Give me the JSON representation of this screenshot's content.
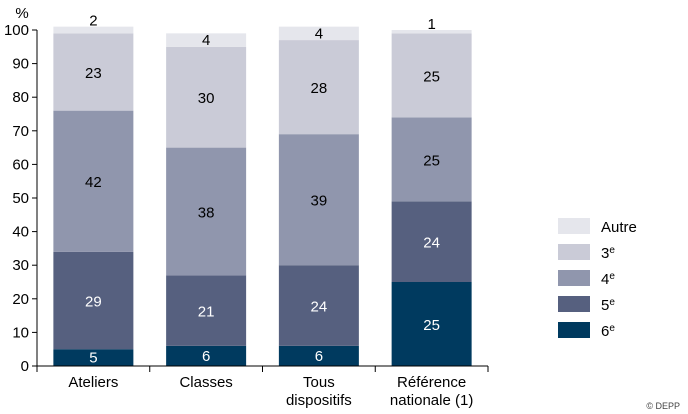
{
  "chart_data": {
    "type": "bar",
    "stacked": true,
    "y_unit": "%",
    "ylim": [
      0,
      100
    ],
    "yticks": [
      0,
      10,
      20,
      30,
      40,
      50,
      60,
      70,
      80,
      90,
      100
    ],
    "categories": [
      [
        "Ateliers"
      ],
      [
        "Classes"
      ],
      [
        "Tous",
        "dispositifs"
      ],
      [
        "Référence",
        "nationale (1)"
      ]
    ],
    "series": [
      {
        "name": "6e",
        "base": "6",
        "sup": "e",
        "color": "#003a5f",
        "values": [
          5,
          6,
          6,
          25
        ]
      },
      {
        "name": "5e",
        "base": "5",
        "sup": "e",
        "color": "#56607f",
        "values": [
          29,
          21,
          24,
          24
        ]
      },
      {
        "name": "4e",
        "base": "4",
        "sup": "e",
        "color": "#9096ad",
        "values": [
          42,
          38,
          39,
          25
        ]
      },
      {
        "name": "3e",
        "base": "3",
        "sup": "e",
        "color": "#cacbd7",
        "values": [
          23,
          30,
          28,
          25
        ]
      },
      {
        "name": "Autre",
        "base": "Autre",
        "sup": "",
        "color": "#e5e6ec",
        "values": [
          2,
          4,
          4,
          1
        ]
      }
    ],
    "legend_position": "right",
    "grid": false
  },
  "credit": "© DEPP"
}
